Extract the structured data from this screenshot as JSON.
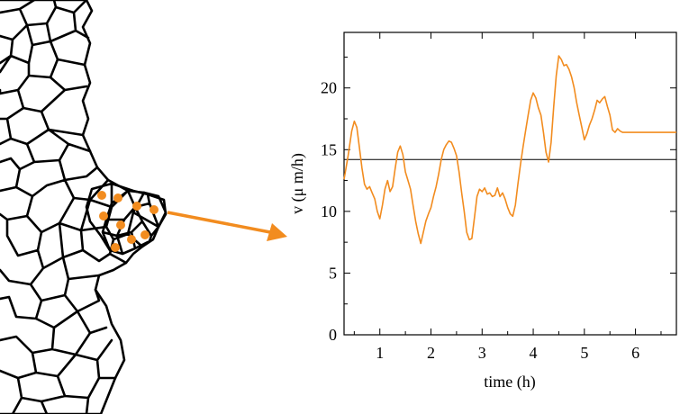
{
  "colors": {
    "accent": "#f28c1f",
    "cell_edges": "#000000",
    "mean_line": "#000000"
  },
  "chart_data": {
    "type": "line",
    "title": "",
    "xlabel": "time (h)",
    "ylabel": "v (μ m/h)",
    "xlim": [
      0.3,
      6.8
    ],
    "ylim": [
      0,
      24.5
    ],
    "xticks": [
      "1",
      "2",
      "3",
      "4",
      "5",
      "6"
    ],
    "yticks": [
      "0",
      "5",
      "10",
      "15",
      "20"
    ],
    "grid": false,
    "legend": "none",
    "reference_line": {
      "y": 14.2,
      "label": ""
    },
    "series": [
      {
        "color": "#f28c1f",
        "x": [
          0.3,
          0.38,
          0.45,
          0.5,
          0.55,
          0.6,
          0.65,
          0.7,
          0.75,
          0.8,
          0.85,
          0.9,
          0.95,
          1.0,
          1.05,
          1.1,
          1.15,
          1.2,
          1.25,
          1.3,
          1.35,
          1.4,
          1.45,
          1.5,
          1.55,
          1.6,
          1.65,
          1.7,
          1.75,
          1.8,
          1.85,
          1.9,
          1.95,
          2.0,
          2.05,
          2.1,
          2.15,
          2.2,
          2.25,
          2.3,
          2.35,
          2.4,
          2.45,
          2.5,
          2.55,
          2.6,
          2.65,
          2.7,
          2.75,
          2.8,
          2.85,
          2.9,
          2.95,
          3.0,
          3.05,
          3.1,
          3.15,
          3.2,
          3.25,
          3.3,
          3.35,
          3.4,
          3.45,
          3.5,
          3.55,
          3.6,
          3.65,
          3.7,
          3.75,
          3.8,
          3.85,
          3.9,
          3.95,
          4.0,
          4.05,
          4.1,
          4.15,
          4.2,
          4.25,
          4.3,
          4.35,
          4.4,
          4.45,
          4.5,
          4.55,
          4.6,
          4.65,
          4.7,
          4.75,
          4.8,
          4.85,
          4.9,
          4.95,
          5.0,
          5.05,
          5.1,
          5.15,
          5.2,
          5.25,
          5.3,
          5.35,
          5.4,
          5.45,
          5.5,
          5.55,
          5.6,
          5.65,
          5.7,
          5.75,
          5.8,
          5.85,
          5.9,
          5.95,
          6.0,
          6.05,
          6.1,
          6.15,
          6.2,
          6.25,
          6.3,
          6.35,
          6.4,
          6.45,
          6.5,
          6.55,
          6.6,
          6.65,
          6.7,
          6.75,
          6.8
        ],
        "values": [
          12.6,
          14.5,
          16.5,
          17.3,
          16.8,
          15.2,
          13.5,
          12.2,
          11.8,
          12.0,
          11.5,
          11.0,
          10.0,
          9.4,
          10.5,
          11.8,
          12.5,
          11.6,
          12.0,
          13.5,
          14.8,
          15.3,
          14.6,
          13.2,
          12.5,
          11.8,
          10.5,
          9.2,
          8.2,
          7.4,
          8.3,
          9.2,
          9.8,
          10.3,
          11.2,
          12.0,
          13.0,
          14.2,
          15.0,
          15.4,
          15.7,
          15.6,
          15.1,
          14.5,
          13.2,
          11.5,
          10.0,
          8.3,
          7.7,
          7.8,
          9.5,
          11.2,
          11.8,
          11.6,
          11.9,
          11.4,
          11.5,
          11.2,
          11.3,
          11.9,
          11.2,
          11.5,
          11.0,
          10.3,
          9.8,
          9.6,
          10.5,
          12.2,
          13.8,
          15.2,
          16.5,
          17.8,
          19.0,
          19.6,
          19.2,
          18.4,
          17.8,
          16.4,
          14.8,
          14.0,
          15.6,
          18.5,
          21.0,
          22.6,
          22.3,
          21.8,
          21.9,
          21.5,
          20.9,
          20.0,
          18.8,
          17.8,
          16.8,
          15.8,
          16.3,
          17.0,
          17.5,
          18.2,
          19.0,
          18.8,
          19.1,
          19.3,
          18.5,
          17.8,
          16.6,
          16.4,
          16.7,
          16.5,
          16.4,
          16.4,
          16.4,
          16.4,
          16.4,
          16.4,
          16.4,
          16.4,
          16.4,
          16.4,
          16.4,
          16.4,
          16.4,
          16.4,
          16.4,
          16.4,
          16.4,
          16.4,
          16.4,
          16.4,
          16.4,
          16.4
        ]
      }
    ]
  },
  "inset": {
    "type": "tissue-cell-diagram"
  }
}
